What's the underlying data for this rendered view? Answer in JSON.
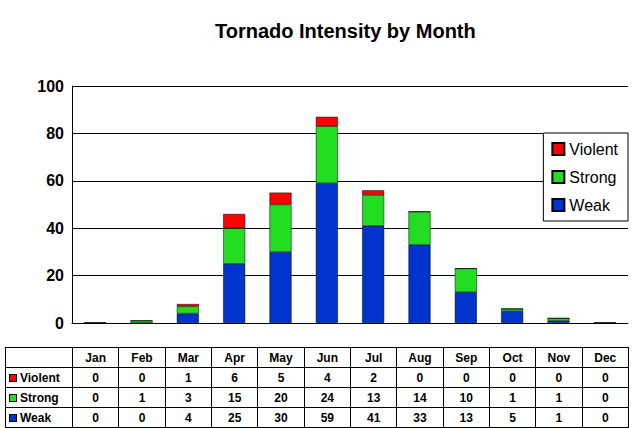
{
  "chart_data": {
    "type": "bar",
    "title": "Tornado Intensity by Month",
    "categories": [
      "Jan",
      "Feb",
      "Mar",
      "Apr",
      "May",
      "Jun",
      "Jul",
      "Aug",
      "Sep",
      "Oct",
      "Nov",
      "Dec"
    ],
    "series": [
      {
        "name": "Violent",
        "color": "#ff0000",
        "values": [
          0,
          0,
          1,
          6,
          5,
          4,
          2,
          0,
          0,
          0,
          0,
          0
        ]
      },
      {
        "name": "Strong",
        "color": "#22dd22",
        "values": [
          0,
          1,
          3,
          15,
          20,
          24,
          13,
          14,
          10,
          1,
          1,
          0
        ]
      },
      {
        "name": "Weak",
        "color": "#0033cc",
        "values": [
          0,
          0,
          4,
          25,
          30,
          59,
          41,
          33,
          13,
          5,
          1,
          0
        ]
      }
    ],
    "ylim": [
      0,
      100
    ],
    "yticks": [
      0,
      20,
      40,
      60,
      80,
      100
    ],
    "grid": true,
    "stacked": true,
    "legend": "right",
    "tick_labels": "y"
  }
}
